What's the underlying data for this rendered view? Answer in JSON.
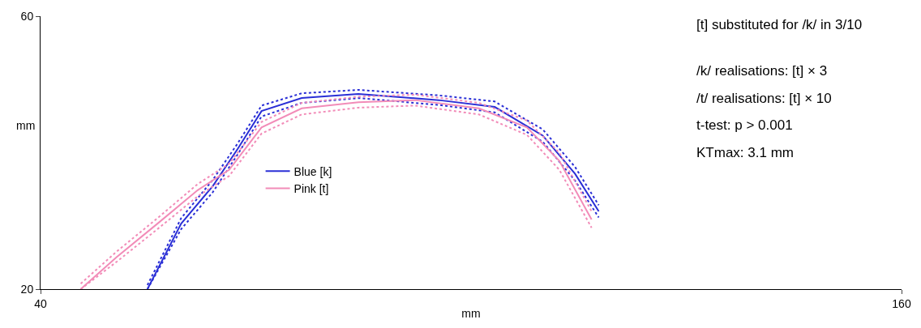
{
  "chart_data": {
    "type": "line",
    "xlabel": "mm",
    "ylabel": "mm",
    "xlim": [
      40,
      160
    ],
    "ylim": [
      20,
      60
    ],
    "xticks": [
      40,
      160
    ],
    "yticks": [
      20,
      60
    ],
    "legend": "center",
    "marker": "none",
    "line_style": "solid",
    "annotations": [
      "[t] substituted for /k/ in 3/10",
      "/k/ realisations: [t] × 3",
      "/t/ realisations: [t] × 10",
      "t-test: p > 0.001",
      "KTmax: 3.1 mm"
    ],
    "series": [
      {
        "name": "Blue [k]",
        "color": "#2a2fd6",
        "x": [
          54.9,
          59.6,
          64.0,
          67.5,
          70.8,
          76.4,
          84.3,
          95.5,
          103.3,
          110.0,
          114.5,
          117.8
        ],
        "values": [
          20,
          29.6,
          35.1,
          40.6,
          46.1,
          48.0,
          48.6,
          47.7,
          46.7,
          42.5,
          36.9,
          31.4
        ]
      },
      {
        "color": "#2a2fd6",
        "line_style": "dotted",
        "x": [
          54.9,
          59.6,
          64.0,
          67.5,
          70.8,
          76.4,
          84.3,
          95.5,
          103.3,
          110.0,
          114.5,
          117.8
        ],
        "values": [
          20,
          28.8,
          34.2,
          39.8,
          45.3,
          47.3,
          48.0,
          47.0,
          45.9,
          41.6,
          35.9,
          30.5
        ]
      },
      {
        "color": "#2a2fd6",
        "line_style": "dotted",
        "x": [
          54.9,
          59.6,
          64.0,
          67.5,
          70.8,
          76.4,
          84.3,
          95.5,
          103.3,
          110.0,
          114.5,
          117.8
        ],
        "values": [
          20.6,
          30.4,
          36.0,
          41.4,
          46.9,
          48.7,
          49.2,
          48.4,
          47.5,
          43.4,
          37.9,
          32.3
        ]
      },
      {
        "name": "Pink [t]",
        "color": "#f28cb8",
        "x": [
          45.6,
          50.6,
          56.3,
          61.9,
          66.3,
          70.8,
          76.4,
          84.3,
          92.2,
          101.1,
          107.8,
          112.3,
          116.8
        ],
        "values": [
          20,
          24.7,
          29.6,
          34.5,
          37.5,
          43.7,
          46.5,
          47.4,
          47.7,
          46.5,
          43.7,
          38.8,
          30.2
        ]
      },
      {
        "color": "#f28cb8",
        "line_style": "dotted",
        "x": [
          45.6,
          50.6,
          56.3,
          61.9,
          66.3,
          70.8,
          76.4,
          84.3,
          92.2,
          101.1,
          107.8,
          112.3,
          116.8
        ],
        "values": [
          20,
          24.0,
          28.8,
          33.6,
          36.6,
          42.8,
          45.6,
          46.6,
          46.9,
          45.6,
          42.6,
          37.5,
          29.0
        ]
      },
      {
        "color": "#f28cb8",
        "line_style": "dotted",
        "x": [
          45.6,
          50.6,
          56.3,
          61.9,
          66.3,
          70.8,
          76.4,
          84.3,
          92.2,
          101.1,
          107.8,
          112.3,
          116.8
        ],
        "values": [
          20.8,
          25.5,
          30.4,
          35.4,
          38.4,
          44.5,
          47.3,
          48.2,
          48.5,
          47.3,
          44.7,
          40.0,
          31.4
        ]
      }
    ]
  }
}
